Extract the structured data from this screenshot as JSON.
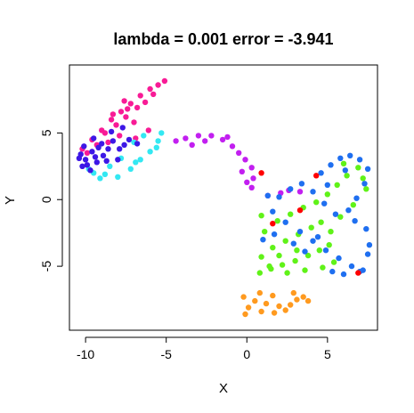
{
  "chart_data": {
    "type": "scatter",
    "title": "lambda = 0.001 error = -3.941",
    "xlabel": "X",
    "ylabel": "Y",
    "xlim": [
      -11,
      8.1
    ],
    "ylim": [
      -9.8,
      10.1
    ],
    "xticks": [
      -10,
      -5,
      0,
      5
    ],
    "yticks": [
      -5,
      0,
      5
    ],
    "xtick_labels": [
      "-10",
      "-5",
      "0",
      "5"
    ],
    "ytick_labels": [
      "-5",
      "0",
      "5"
    ],
    "grid": false,
    "legend": "none",
    "series": [
      {
        "color": "#f81b96",
        "points": [
          [
            -10.2,
            3.8
          ],
          [
            -9.6,
            4.5
          ],
          [
            -9.0,
            5.2
          ],
          [
            -8.4,
            6.0
          ],
          [
            -7.8,
            6.6
          ],
          [
            -7.2,
            7.2
          ],
          [
            -6.6,
            7.8
          ],
          [
            -6.0,
            8.3
          ],
          [
            -5.5,
            8.6
          ],
          [
            -5.1,
            8.9
          ],
          [
            -8.8,
            5.0
          ],
          [
            -7.5,
            6.2
          ],
          [
            -6.8,
            6.9
          ],
          [
            -9.3,
            4.1
          ],
          [
            -7.0,
            5.8
          ],
          [
            -8.1,
            5.6
          ],
          [
            -6.3,
            7.3
          ],
          [
            -9.9,
            3.5
          ],
          [
            -7.9,
            4.8
          ],
          [
            -6.9,
            4.6
          ],
          [
            -8.6,
            4.3
          ],
          [
            -7.4,
            6.8
          ],
          [
            -5.8,
            7.9
          ],
          [
            -8.3,
            6.4
          ],
          [
            -6.1,
            5.2
          ],
          [
            -7.6,
            7.4
          ]
        ]
      },
      {
        "color": "#33e8f2",
        "points": [
          [
            -9.5,
            2.0
          ],
          [
            -8.8,
            1.9
          ],
          [
            -8.0,
            1.7
          ],
          [
            -7.2,
            2.3
          ],
          [
            -6.6,
            3.0
          ],
          [
            -6.0,
            3.6
          ],
          [
            -5.5,
            4.4
          ],
          [
            -5.3,
            5.0
          ],
          [
            -7.0,
            4.3
          ],
          [
            -8.5,
            2.5
          ],
          [
            -9.8,
            2.3
          ],
          [
            -6.4,
            4.8
          ],
          [
            -7.8,
            3.1
          ],
          [
            -5.6,
            3.9
          ],
          [
            -9.1,
            1.6
          ],
          [
            -6.9,
            2.8
          ]
        ]
      },
      {
        "color": "#3d17e6",
        "points": [
          [
            -10.3,
            3.4
          ],
          [
            -10.0,
            3.0
          ],
          [
            -9.6,
            3.6
          ],
          [
            -9.9,
            2.6
          ],
          [
            -9.3,
            2.8
          ],
          [
            -8.9,
            3.3
          ],
          [
            -9.0,
            4.2
          ],
          [
            -9.5,
            4.6
          ],
          [
            -10.1,
            4.0
          ],
          [
            -8.6,
            3.8
          ],
          [
            -8.3,
            4.4
          ],
          [
            -7.9,
            3.8
          ],
          [
            -7.6,
            4.1
          ],
          [
            -8.7,
            2.9
          ],
          [
            -9.7,
            2.2
          ],
          [
            -10.2,
            2.5
          ],
          [
            -7.3,
            4.5
          ],
          [
            -8.0,
            3.0
          ],
          [
            -9.2,
            3.9
          ],
          [
            -8.4,
            5.1
          ],
          [
            -7.7,
            5.4
          ],
          [
            -6.8,
            4.2
          ],
          [
            -10.4,
            3.1
          ],
          [
            -9.4,
            3.2
          ]
        ]
      },
      {
        "color": "#c21ff0",
        "points": [
          [
            -3.8,
            4.6
          ],
          [
            -3.0,
            4.8
          ],
          [
            -2.2,
            4.8
          ],
          [
            -1.5,
            4.5
          ],
          [
            -0.9,
            4.0
          ],
          [
            -0.5,
            3.5
          ],
          [
            -0.1,
            3.0
          ],
          [
            0.3,
            2.4
          ],
          [
            0.4,
            1.6
          ],
          [
            0.3,
            0.9
          ],
          [
            -1.2,
            4.7
          ],
          [
            -2.6,
            4.4
          ],
          [
            -0.3,
            2.1
          ],
          [
            -4.4,
            4.4
          ],
          [
            -3.4,
            4.1
          ],
          [
            0.0,
            1.3
          ],
          [
            1.3,
            0.3
          ],
          [
            2.1,
            0.5
          ],
          [
            2.6,
            0.7
          ],
          [
            3.3,
            0.6
          ]
        ]
      },
      {
        "color": "#ff9a1f",
        "points": [
          [
            -0.2,
            -7.3
          ],
          [
            0.5,
            -7.6
          ],
          [
            1.2,
            -7.8
          ],
          [
            2.0,
            -8.0
          ],
          [
            2.7,
            -7.9
          ],
          [
            3.1,
            -7.5
          ],
          [
            3.5,
            -7.3
          ],
          [
            0.1,
            -8.1
          ],
          [
            0.9,
            -8.4
          ],
          [
            1.7,
            -8.5
          ],
          [
            2.4,
            -8.3
          ],
          [
            0.8,
            -7.0
          ],
          [
            1.6,
            -7.2
          ],
          [
            -0.1,
            -8.6
          ],
          [
            2.9,
            -7.0
          ],
          [
            3.8,
            -7.6
          ]
        ]
      },
      {
        "color": "#60f218",
        "points": [
          [
            0.8,
            -5.5
          ],
          [
            1.5,
            -5.2
          ],
          [
            2.2,
            -4.9
          ],
          [
            3.0,
            -4.6
          ],
          [
            3.8,
            -4.2
          ],
          [
            4.5,
            -3.8
          ],
          [
            5.1,
            -3.4
          ],
          [
            0.9,
            -4.3
          ],
          [
            1.6,
            -3.6
          ],
          [
            2.4,
            -3.1
          ],
          [
            3.2,
            -2.6
          ],
          [
            4.0,
            -2.1
          ],
          [
            4.6,
            -1.7
          ],
          [
            1.1,
            -2.4
          ],
          [
            1.9,
            -1.6
          ],
          [
            2.7,
            -1.1
          ],
          [
            3.5,
            -0.6
          ],
          [
            4.3,
            -0.2
          ],
          [
            5.0,
            0.4
          ],
          [
            5.6,
            1.1
          ],
          [
            6.2,
            1.8
          ],
          [
            6.9,
            2.4
          ],
          [
            7.4,
            0.8
          ],
          [
            6.6,
            -0.4
          ],
          [
            5.8,
            -1.3
          ],
          [
            5.2,
            -2.4
          ],
          [
            4.7,
            -5.1
          ],
          [
            3.6,
            -5.3
          ],
          [
            2.5,
            -5.5
          ],
          [
            1.4,
            -5.0
          ],
          [
            6.0,
            2.7
          ],
          [
            7.2,
            1.6
          ],
          [
            2.0,
            -4.2
          ],
          [
            3.1,
            -3.8
          ],
          [
            0.9,
            -1.2
          ],
          [
            5.4,
            -4.7
          ]
        ]
      },
      {
        "color": "#1f6ff0",
        "points": [
          [
            1.6,
            -0.9
          ],
          [
            2.4,
            -1.7
          ],
          [
            3.3,
            -2.4
          ],
          [
            4.1,
            -3.1
          ],
          [
            4.9,
            -3.8
          ],
          [
            5.7,
            -4.4
          ],
          [
            6.5,
            -5.0
          ],
          [
            7.2,
            -5.3
          ],
          [
            7.5,
            -4.1
          ],
          [
            7.6,
            -3.4
          ],
          [
            4.6,
            2.0
          ],
          [
            5.2,
            2.6
          ],
          [
            5.8,
            3.1
          ],
          [
            6.4,
            3.3
          ],
          [
            7.0,
            3.0
          ],
          [
            7.5,
            2.3
          ],
          [
            7.3,
            1.2
          ],
          [
            6.8,
            0.1
          ],
          [
            6.3,
            -0.8
          ],
          [
            5.5,
            -1.1
          ],
          [
            4.8,
            -0.3
          ],
          [
            4.1,
            0.6
          ],
          [
            3.4,
            1.2
          ],
          [
            2.7,
            0.8
          ],
          [
            2.0,
            0.2
          ],
          [
            1.3,
            0.3
          ],
          [
            1.0,
            -3.0
          ],
          [
            1.7,
            -2.6
          ],
          [
            2.9,
            -3.3
          ],
          [
            3.6,
            -3.9
          ],
          [
            6.1,
            2.2
          ],
          [
            5.0,
            1.1
          ],
          [
            6.7,
            -1.6
          ],
          [
            7.4,
            -2.2
          ],
          [
            5.3,
            -5.4
          ],
          [
            6.0,
            -5.6
          ],
          [
            7.0,
            -5.4
          ],
          [
            4.4,
            -2.8
          ]
        ]
      },
      {
        "color": "#ff0000",
        "points": [
          [
            0.9,
            2.0
          ],
          [
            4.3,
            1.8
          ],
          [
            6.9,
            -5.5
          ],
          [
            1.6,
            -1.8
          ],
          [
            3.3,
            -0.8
          ]
        ]
      }
    ]
  }
}
